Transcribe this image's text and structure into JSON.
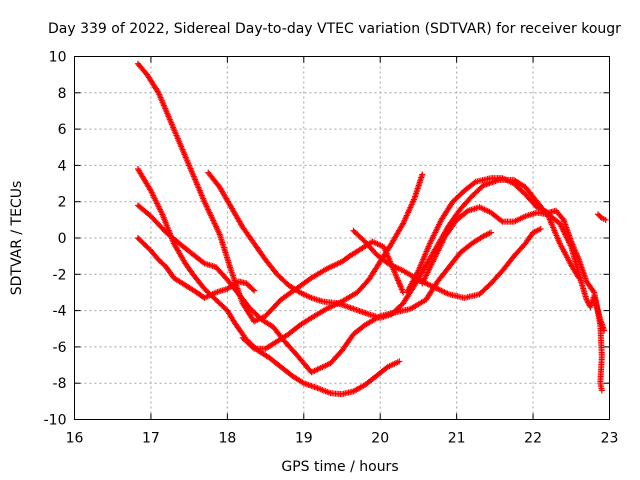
{
  "chart_data": {
    "type": "scatter",
    "title": "Day 339 of 2022, Sidereal Day-to-day VTEC variation (SDTVAR) for receiver kougr",
    "xlabel": "GPS time / hours",
    "ylabel": "SDTVAR / TECUs",
    "xlim": [
      16,
      23
    ],
    "ylim": [
      -10,
      10
    ],
    "xticks": [
      16,
      17,
      18,
      19,
      20,
      21,
      22,
      23
    ],
    "yticks": [
      -10,
      -8,
      -6,
      -4,
      -2,
      0,
      2,
      4,
      6,
      8,
      10
    ],
    "xtick_labels": [
      "16",
      "17",
      "18",
      "19",
      "20",
      "21",
      "22",
      "23"
    ],
    "ytick_labels": [
      "-10",
      "-8",
      "-6",
      "-4",
      "-2",
      "0",
      "2",
      "4",
      "6",
      "8",
      "10"
    ],
    "grid": true,
    "marker": "+",
    "color": "#ff0000",
    "series": [
      {
        "name": "track-1",
        "points": [
          [
            16.83,
            9.6
          ],
          [
            16.95,
            9.0
          ],
          [
            17.1,
            8.0
          ],
          [
            17.3,
            6.0
          ],
          [
            17.5,
            4.0
          ],
          [
            17.7,
            2.0
          ],
          [
            17.9,
            0.2
          ],
          [
            18.05,
            -1.8
          ],
          [
            18.2,
            -3.6
          ],
          [
            18.35,
            -4.6
          ],
          [
            18.5,
            -4.3
          ],
          [
            18.7,
            -3.4
          ],
          [
            18.9,
            -2.8
          ],
          [
            19.1,
            -2.2
          ],
          [
            19.3,
            -1.7
          ],
          [
            19.5,
            -1.3
          ],
          [
            19.6,
            -1.0
          ],
          [
            19.75,
            -0.6
          ],
          [
            19.9,
            -0.2
          ],
          [
            20.05,
            -0.5
          ],
          [
            20.2,
            -2.0
          ],
          [
            20.3,
            -3.0
          ]
        ]
      },
      {
        "name": "track-2",
        "points": [
          [
            16.83,
            3.8
          ],
          [
            17.0,
            2.6
          ],
          [
            17.15,
            1.3
          ],
          [
            17.3,
            -0.3
          ],
          [
            17.45,
            -1.4
          ],
          [
            17.55,
            -2.0
          ],
          [
            17.7,
            -2.8
          ],
          [
            17.85,
            -3.4
          ],
          [
            18.0,
            -4.0
          ],
          [
            18.1,
            -4.7
          ],
          [
            18.25,
            -5.6
          ],
          [
            18.4,
            -6.2
          ],
          [
            18.55,
            -6.6
          ],
          [
            18.7,
            -7.1
          ],
          [
            18.85,
            -7.6
          ],
          [
            19.0,
            -8.0
          ],
          [
            19.2,
            -8.3
          ],
          [
            19.35,
            -8.55
          ],
          [
            19.5,
            -8.6
          ],
          [
            19.65,
            -8.45
          ],
          [
            19.8,
            -8.1
          ],
          [
            19.95,
            -7.6
          ],
          [
            20.1,
            -7.1
          ],
          [
            20.25,
            -6.8
          ]
        ]
      },
      {
        "name": "track-3",
        "points": [
          [
            16.83,
            1.8
          ],
          [
            17.0,
            1.2
          ],
          [
            17.2,
            0.3
          ],
          [
            17.4,
            -0.4
          ],
          [
            17.55,
            -0.9
          ],
          [
            17.7,
            -1.4
          ],
          [
            17.85,
            -1.6
          ],
          [
            18.0,
            -2.3
          ],
          [
            18.15,
            -3.1
          ],
          [
            18.3,
            -3.9
          ],
          [
            18.45,
            -4.5
          ],
          [
            18.6,
            -4.9
          ],
          [
            18.75,
            -5.7
          ],
          [
            18.9,
            -6.4
          ],
          [
            19.0,
            -6.9
          ],
          [
            19.1,
            -7.4
          ],
          [
            19.2,
            -7.2
          ],
          [
            19.35,
            -6.9
          ],
          [
            19.5,
            -6.2
          ],
          [
            19.65,
            -5.3
          ],
          [
            19.8,
            -4.8
          ],
          [
            20.0,
            -4.3
          ],
          [
            20.2,
            -4.1
          ],
          [
            20.4,
            -3.9
          ],
          [
            20.6,
            -3.4
          ],
          [
            20.75,
            -2.4
          ],
          [
            20.9,
            -1.6
          ],
          [
            21.05,
            -0.8
          ],
          [
            21.2,
            -0.3
          ],
          [
            21.35,
            0.1
          ],
          [
            21.45,
            0.3
          ]
        ]
      },
      {
        "name": "track-4",
        "points": [
          [
            16.83,
            0.0
          ],
          [
            17.0,
            -0.7
          ],
          [
            17.1,
            -1.2
          ],
          [
            17.2,
            -1.6
          ],
          [
            17.3,
            -2.2
          ],
          [
            17.45,
            -2.6
          ],
          [
            17.6,
            -3.0
          ],
          [
            17.7,
            -3.3
          ],
          [
            17.85,
            -3.0
          ],
          [
            18.0,
            -2.8
          ],
          [
            18.15,
            -2.4
          ],
          [
            18.25,
            -2.5
          ],
          [
            18.35,
            -2.9
          ]
        ]
      },
      {
        "name": "track-5",
        "points": [
          [
            17.75,
            3.6
          ],
          [
            17.9,
            2.8
          ],
          [
            18.05,
            1.7
          ],
          [
            18.2,
            0.6
          ],
          [
            18.35,
            -0.3
          ],
          [
            18.5,
            -1.2
          ],
          [
            18.65,
            -2.0
          ],
          [
            18.8,
            -2.6
          ],
          [
            18.95,
            -3.0
          ],
          [
            19.1,
            -3.3
          ],
          [
            19.25,
            -3.5
          ],
          [
            19.45,
            -3.6
          ],
          [
            19.65,
            -3.9
          ],
          [
            19.85,
            -4.2
          ],
          [
            20.0,
            -4.4
          ],
          [
            20.15,
            -4.2
          ],
          [
            20.3,
            -3.6
          ],
          [
            20.45,
            -2.6
          ],
          [
            20.6,
            -1.5
          ],
          [
            20.75,
            -0.4
          ],
          [
            20.9,
            0.7
          ],
          [
            21.05,
            1.6
          ],
          [
            21.2,
            2.3
          ],
          [
            21.35,
            2.9
          ],
          [
            21.55,
            3.2
          ],
          [
            21.75,
            3.2
          ],
          [
            21.9,
            2.8
          ],
          [
            22.05,
            2.0
          ],
          [
            22.2,
            1.2
          ],
          [
            22.35,
            -0.3
          ],
          [
            22.5,
            -1.5
          ],
          [
            22.6,
            -2.2
          ]
        ]
      },
      {
        "name": "track-6",
        "points": [
          [
            18.2,
            -5.5
          ],
          [
            18.35,
            -6.1
          ],
          [
            18.5,
            -6.1
          ],
          [
            18.65,
            -5.7
          ],
          [
            18.8,
            -5.3
          ],
          [
            18.95,
            -4.8
          ],
          [
            19.1,
            -4.4
          ],
          [
            19.3,
            -3.9
          ],
          [
            19.5,
            -3.5
          ],
          [
            19.7,
            -3.0
          ],
          [
            19.85,
            -2.3
          ],
          [
            20.0,
            -1.3
          ],
          [
            20.15,
            -0.3
          ],
          [
            20.3,
            0.8
          ],
          [
            20.45,
            2.2
          ],
          [
            20.55,
            3.5
          ]
        ]
      },
      {
        "name": "track-7",
        "points": [
          [
            19.65,
            0.4
          ],
          [
            19.8,
            -0.2
          ],
          [
            19.95,
            -0.9
          ],
          [
            20.1,
            -1.4
          ],
          [
            20.3,
            -1.8
          ],
          [
            20.5,
            -2.3
          ],
          [
            20.7,
            -2.7
          ],
          [
            20.9,
            -3.1
          ],
          [
            21.1,
            -3.3
          ],
          [
            21.3,
            -3.1
          ],
          [
            21.45,
            -2.5
          ],
          [
            21.6,
            -1.8
          ],
          [
            21.75,
            -1.0
          ],
          [
            21.9,
            -0.3
          ],
          [
            22.0,
            0.3
          ],
          [
            22.1,
            0.5
          ]
        ]
      },
      {
        "name": "track-8",
        "points": [
          [
            20.35,
            -3.0
          ],
          [
            20.5,
            -1.8
          ],
          [
            20.65,
            -0.3
          ],
          [
            20.8,
            1.0
          ],
          [
            20.95,
            2.0
          ],
          [
            21.1,
            2.6
          ],
          [
            21.25,
            3.1
          ],
          [
            21.45,
            3.3
          ],
          [
            21.6,
            3.3
          ],
          [
            21.75,
            3.0
          ],
          [
            21.9,
            2.4
          ],
          [
            22.05,
            1.7
          ],
          [
            22.2,
            1.4
          ],
          [
            22.3,
            1.5
          ],
          [
            22.4,
            1.0
          ],
          [
            22.5,
            -0.2
          ],
          [
            22.6,
            -1.2
          ],
          [
            22.7,
            -2.4
          ],
          [
            22.8,
            -3.0
          ],
          [
            22.88,
            -4.8
          ],
          [
            22.9,
            -6.5
          ],
          [
            22.88,
            -8.0
          ],
          [
            22.9,
            -8.4
          ]
        ]
      },
      {
        "name": "track-9",
        "points": [
          [
            20.55,
            -2.5
          ],
          [
            20.7,
            -1.2
          ],
          [
            20.85,
            0.1
          ],
          [
            21.0,
            1.0
          ],
          [
            21.15,
            1.5
          ],
          [
            21.3,
            1.7
          ],
          [
            21.45,
            1.4
          ],
          [
            21.6,
            0.9
          ],
          [
            21.75,
            0.9
          ],
          [
            21.9,
            1.2
          ],
          [
            22.05,
            1.4
          ],
          [
            22.2,
            1.3
          ],
          [
            22.35,
            0.8
          ],
          [
            22.5,
            -0.5
          ],
          [
            22.6,
            -2.0
          ],
          [
            22.7,
            -3.4
          ],
          [
            22.75,
            -3.8
          ],
          [
            22.8,
            -3.2
          ],
          [
            22.88,
            -4.5
          ],
          [
            22.93,
            -5.1
          ]
        ]
      },
      {
        "name": "track-10",
        "points": [
          [
            22.85,
            1.3
          ],
          [
            22.9,
            1.1
          ],
          [
            22.95,
            1.0
          ]
        ]
      }
    ]
  }
}
